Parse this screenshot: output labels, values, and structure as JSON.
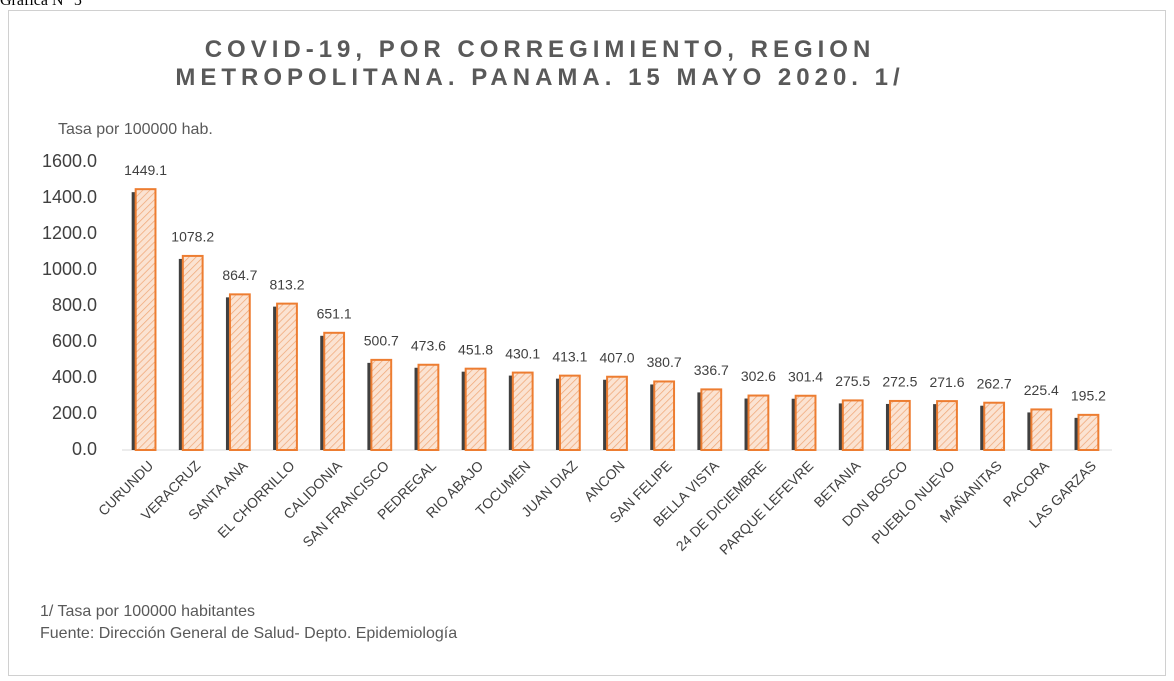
{
  "caption": "Gráfica N° 5",
  "chart_data": {
    "type": "bar",
    "title": "COVID-19, POR CORREGIMIENTO, REGION METROPOLITANA. PANAMA. 15 MAYO 2020. 1/",
    "y_label": "Tasa por 100000 hab.",
    "categories": [
      "CURUNDU",
      "VERACRUZ",
      "SANTA ANA",
      "EL CHORRILLO",
      "CALIDONIA",
      "SAN FRANCISCO",
      "PEDREGAL",
      "RIO ABAJO",
      "TOCUMEN",
      "JUAN DIAZ",
      "ANCON",
      "SAN FELIPE",
      "BELLA VISTA",
      "24 DE DICIEMBRE",
      "PARQUE LEFEVRE",
      "BETANIA",
      "DON BOSCO",
      "PUEBLO NUEVO",
      "MAÑANITAS",
      "PACORA",
      "LAS GARZAS"
    ],
    "values": [
      1449.1,
      1078.2,
      864.7,
      813.2,
      651.1,
      500.7,
      473.6,
      451.8,
      430.1,
      413.1,
      407.0,
      380.7,
      336.7,
      302.6,
      301.4,
      275.5,
      272.5,
      271.6,
      262.7,
      225.4,
      195.2
    ],
    "value_labels": [
      "1449.1",
      "1078.2",
      "864.7",
      "813.2",
      "651.1",
      "500.7",
      "473.6",
      "451.8",
      "430.1",
      "413.1",
      "407.0",
      "380.7",
      "336.7",
      "302.6",
      "301.4",
      "275.5",
      "272.5",
      "271.6",
      "262.7",
      "225.4",
      "195.2"
    ],
    "color": "#ed7d31",
    "ylim": [
      0,
      1600
    ],
    "yticks": [
      {
        "value": 0,
        "label": "0.0"
      },
      {
        "value": 200,
        "label": "200.0"
      },
      {
        "value": 400,
        "label": "400.0"
      },
      {
        "value": 600,
        "label": "600.0"
      },
      {
        "value": 800,
        "label": "800.0"
      },
      {
        "value": 1000,
        "label": "1000.0"
      },
      {
        "value": 1200,
        "label": "1200.0"
      },
      {
        "value": 1400,
        "label": "1400.0"
      },
      {
        "value": 1600,
        "label": "1600.0"
      }
    ],
    "grid": false,
    "notes": [
      "1/ Tasa por 100000 habitantes",
      "Fuente: Dirección General de Salud- Depto. Epidemiología"
    ]
  }
}
